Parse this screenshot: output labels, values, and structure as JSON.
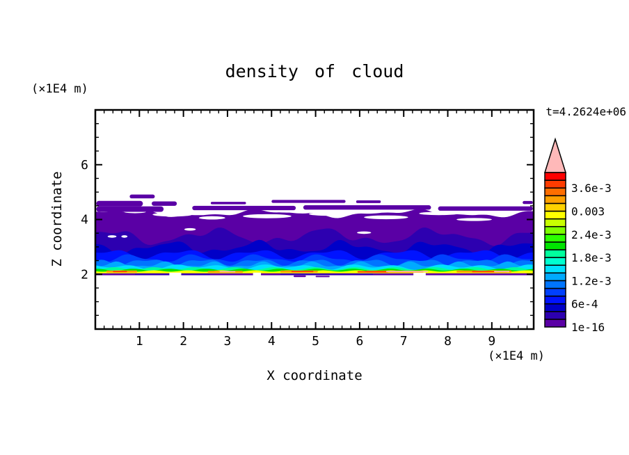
{
  "page": {
    "background": "#ffffff",
    "text_color": "#000000"
  },
  "chart_data": {
    "type": "heatmap",
    "subtype": "filled-contour",
    "title": "density of cloud",
    "time_label": "t=4.2624e+06",
    "xlabel": "X coordinate",
    "zlabel": "Z coordinate",
    "x_units": "(×1E4 m)",
    "z_units": "(×1E4 m)",
    "xlim": [
      0,
      9.95
    ],
    "zlim": [
      0,
      8
    ],
    "x_major_ticks": [
      1,
      2,
      3,
      4,
      5,
      6,
      7,
      8,
      9
    ],
    "x_tick_labels": [
      "1",
      "2",
      "3",
      "4",
      "5",
      "6",
      "7",
      "8",
      "9"
    ],
    "x_minor_step": 0.2,
    "z_major_ticks": [
      2,
      4,
      6
    ],
    "z_tick_labels": [
      "2",
      "4",
      "6"
    ],
    "z_minor_step": 0.5,
    "grid": false,
    "colorbar": {
      "position": "right",
      "segment_count": 20,
      "min_level": "1e-16",
      "step_level": "2e-4",
      "max_level": "4e-3",
      "labels_bottom_to_top": [
        "1e-16",
        "6e-4",
        "1.2e-3",
        "1.8e-3",
        "2.4e-3",
        "0.003",
        "3.6e-3"
      ],
      "label_every_n_segments": 3,
      "overflow_color": "#ffb9b9",
      "outline_color": "#000000",
      "colors_bottom_to_top": [
        "#5a00a5",
        "#2d00b0",
        "#0000c8",
        "#0013ff",
        "#0040ff",
        "#0075ff",
        "#00aaff",
        "#00e1ff",
        "#00ffd0",
        "#00ff9d",
        "#00e400",
        "#2bff00",
        "#7dff00",
        "#c8ff00",
        "#ffff00",
        "#ffd200",
        "#ffa000",
        "#ff6e00",
        "#ff3c00",
        "#ff0000"
      ]
    },
    "field": {
      "description": "cloud density layer approximation, z in 1E4 m data units",
      "bands": [
        {
          "color": "#5a00a5",
          "top": {
            "base": 4.22,
            "waves": [
              [
                0.09,
                3,
                0.6
              ],
              [
                0.05,
                8,
                2.2
              ],
              [
                0.03,
                13,
                4.0
              ]
            ]
          },
          "bottom": 1.97
        },
        {
          "color": "#2d00b0",
          "top": {
            "base": 3.38,
            "waves": [
              [
                0.22,
                4,
                1.1
              ],
              [
                0.1,
                9,
                3.7
              ],
              [
                0.05,
                15,
                0.4
              ]
            ]
          },
          "bottom": 1.98
        },
        {
          "color": "#0000c8",
          "top": {
            "base": 2.98,
            "waves": [
              [
                0.17,
                5,
                2.6
              ],
              [
                0.08,
                11,
                1.2
              ],
              [
                0.04,
                17,
                5.1
              ]
            ]
          },
          "bottom": 1.98
        },
        {
          "color": "#0013ff",
          "top": {
            "base": 2.74,
            "waves": [
              [
                0.13,
                6,
                0.4
              ],
              [
                0.07,
                12,
                3.1
              ]
            ]
          },
          "bottom": 1.98
        },
        {
          "color": "#0040ff",
          "top": {
            "base": 2.58,
            "waves": [
              [
                0.11,
                7,
                4.3
              ],
              [
                0.05,
                14,
                1.8
              ]
            ]
          },
          "bottom": 1.98
        },
        {
          "color": "#0075ff",
          "top": {
            "base": 2.45,
            "waves": [
              [
                0.09,
                8,
                1.9
              ],
              [
                0.05,
                16,
                5.6
              ]
            ]
          },
          "bottom": 1.98
        },
        {
          "color": "#00aaff",
          "top": {
            "base": 2.35,
            "waves": [
              [
                0.08,
                9,
                5.2
              ],
              [
                0.04,
                18,
                2.4
              ]
            ]
          },
          "bottom": 1.98
        },
        {
          "color": "#00e1ff",
          "top": {
            "base": 2.27,
            "waves": [
              [
                0.07,
                10,
                2.8
              ],
              [
                0.05,
                5,
                0.9
              ]
            ]
          },
          "bottom": 1.98
        },
        {
          "color": "#00ff9d",
          "top": {
            "base": 2.21,
            "waves": [
              [
                0.05,
                11,
                4.9
              ]
            ]
          },
          "bottom": 1.98
        },
        {
          "color": "#00e400",
          "top": {
            "base": 2.17,
            "waves": [
              [
                0.035,
                12,
                1.4
              ]
            ]
          },
          "bottom": 1.98
        },
        {
          "color": "#ffff00",
          "top": {
            "base": 2.12,
            "waves": [
              [
                0.025,
                13,
                3.3
              ]
            ]
          },
          "bottom": 1.99
        }
      ],
      "spots": [
        {
          "color": "#ffa000",
          "x0": 0.25,
          "x1": 0.95,
          "z": 2.1,
          "h": 0.07
        },
        {
          "color": "#ff3c00",
          "x0": 0.4,
          "x1": 0.72,
          "z": 2.1,
          "h": 0.045
        },
        {
          "color": "#ffa000",
          "x0": 2.55,
          "x1": 3.35,
          "z": 2.09,
          "h": 0.07
        },
        {
          "color": "#ffb9b9",
          "x0": 2.82,
          "x1": 3.18,
          "z": 2.095,
          "h": 0.04
        },
        {
          "color": "#ffa000",
          "x0": 4.2,
          "x1": 5.05,
          "z": 2.1,
          "h": 0.07
        },
        {
          "color": "#ff3c00",
          "x0": 4.45,
          "x1": 4.95,
          "z": 2.1,
          "h": 0.045
        },
        {
          "color": "#ffa000",
          "x0": 6.15,
          "x1": 7.45,
          "z": 2.095,
          "h": 0.075
        },
        {
          "color": "#ff3c00",
          "x0": 5.95,
          "x1": 6.65,
          "z": 2.09,
          "h": 0.05
        },
        {
          "color": "#ffb9b9",
          "x0": 6.6,
          "x1": 7.55,
          "z": 2.1,
          "h": 0.042
        },
        {
          "color": "#ffa000",
          "x0": 8.2,
          "x1": 9.45,
          "z": 2.1,
          "h": 0.07
        },
        {
          "color": "#ff3c00",
          "x0": 8.55,
          "x1": 9.35,
          "z": 2.095,
          "h": 0.045
        },
        {
          "color": "#ffb9b9",
          "x0": 9.05,
          "x1": 9.4,
          "z": 2.1,
          "h": 0.04
        }
      ],
      "baseline": {
        "color": "#5a00a5",
        "z": 2.0,
        "h": 0.07,
        "dashes": [
          {
            "color": "#2d00b0",
            "x0": 0.9,
            "x1": 2.6
          },
          {
            "color": "#2d00b0",
            "x0": 4.2,
            "x1": 6.3
          }
        ],
        "gaps": [
          [
            1.68,
            1.95
          ],
          [
            3.58,
            3.76
          ],
          [
            7.22,
            7.5
          ]
        ],
        "bumps": [
          [
            4.5,
            4.78,
            1.93,
            0.06
          ],
          [
            5.0,
            5.32,
            1.92,
            0.05
          ]
        ]
      },
      "holes": [
        [
          1.75,
          4.18,
          0.45,
          0.07
        ],
        [
          2.65,
          4.06,
          0.3,
          0.06
        ],
        [
          3.9,
          4.12,
          0.55,
          0.075
        ],
        [
          5.3,
          4.2,
          0.45,
          0.065
        ],
        [
          6.6,
          4.08,
          0.5,
          0.07
        ],
        [
          7.8,
          4.22,
          0.45,
          0.06
        ],
        [
          8.6,
          4.0,
          0.4,
          0.055
        ],
        [
          2.15,
          3.64,
          0.13,
          0.04
        ],
        [
          0.38,
          3.38,
          0.1,
          0.032
        ],
        [
          0.66,
          3.38,
          0.07,
          0.028
        ],
        [
          6.1,
          3.52,
          0.16,
          0.04
        ],
        [
          4.4,
          4.3,
          0.3,
          0.05
        ],
        [
          0.9,
          4.28,
          0.25,
          0.05
        ]
      ],
      "ribbons": [
        [
          0.02,
          1.08,
          4.58,
          0.2
        ],
        [
          1.28,
          1.85,
          4.58,
          0.16
        ],
        [
          0.02,
          1.55,
          4.38,
          0.2
        ],
        [
          0.78,
          1.35,
          4.84,
          0.14
        ],
        [
          2.2,
          4.55,
          4.42,
          0.16
        ],
        [
          4.72,
          7.62,
          4.44,
          0.16
        ],
        [
          7.78,
          9.93,
          4.4,
          0.16
        ],
        [
          4.0,
          5.68,
          4.66,
          0.11
        ],
        [
          5.92,
          6.48,
          4.65,
          0.1
        ],
        [
          9.7,
          9.93,
          4.62,
          0.11
        ],
        [
          2.62,
          3.42,
          4.6,
          0.09
        ]
      ]
    }
  }
}
